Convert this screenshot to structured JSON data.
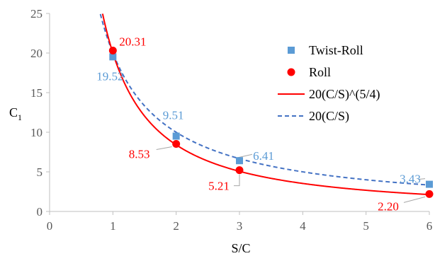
{
  "chart_data": {
    "type": "scatter",
    "xlabel": "S/C",
    "ylabel_main": "C",
    "ylabel_sub": "1",
    "xlim": [
      0,
      6
    ],
    "ylim": [
      0,
      25
    ],
    "x_ticks": [
      0,
      1,
      2,
      3,
      4,
      5,
      6
    ],
    "y_ticks": [
      0,
      5,
      10,
      15,
      20,
      25
    ],
    "x_tick_labels": [
      "0",
      "1",
      "2",
      "3",
      "4",
      "5",
      "6"
    ],
    "y_tick_labels": [
      "0",
      "5",
      "10",
      "15",
      "20",
      "25"
    ],
    "grid": false,
    "legend_position": "right",
    "series": [
      {
        "name": "Twist-Roll",
        "kind": "marker-square",
        "color": "#5b9bd5",
        "x": [
          1,
          2,
          3,
          6
        ],
        "y": [
          19.52,
          9.51,
          6.41,
          3.43
        ],
        "labels": [
          "19.52",
          "9.51",
          "6.41",
          "3.43"
        ]
      },
      {
        "name": "Roll",
        "kind": "marker-circle",
        "color": "#ff0000",
        "x": [
          1,
          2,
          3,
          6
        ],
        "y": [
          20.31,
          8.53,
          5.21,
          2.2
        ],
        "labels": [
          "20.31",
          "8.53",
          "5.21",
          "2.20"
        ]
      },
      {
        "name": "20(C/S)^(5/4)",
        "kind": "line-solid",
        "color": "#ff0000",
        "coef": 20,
        "power": 1.25
      },
      {
        "name": "20(C/S)",
        "kind": "line-dashed",
        "color": "#4472c4",
        "coef": 20,
        "power": 1
      }
    ]
  }
}
